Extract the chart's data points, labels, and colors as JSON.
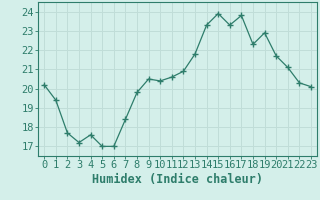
{
  "x": [
    0,
    1,
    2,
    3,
    4,
    5,
    6,
    7,
    8,
    9,
    10,
    11,
    12,
    13,
    14,
    15,
    16,
    17,
    18,
    19,
    20,
    21,
    22,
    23
  ],
  "y": [
    20.2,
    19.4,
    17.7,
    17.2,
    17.6,
    17.0,
    17.0,
    18.4,
    19.8,
    20.5,
    20.4,
    20.6,
    20.9,
    21.8,
    23.3,
    23.9,
    23.3,
    23.8,
    22.3,
    22.9,
    21.7,
    21.1,
    20.3,
    20.1
  ],
  "xlabel": "Humidex (Indice chaleur)",
  "ylim": [
    16.5,
    24.5
  ],
  "xlim": [
    -0.5,
    23.5
  ],
  "yticks": [
    17,
    18,
    19,
    20,
    21,
    22,
    23,
    24
  ],
  "xticks": [
    0,
    1,
    2,
    3,
    4,
    5,
    6,
    7,
    8,
    9,
    10,
    11,
    12,
    13,
    14,
    15,
    16,
    17,
    18,
    19,
    20,
    21,
    22,
    23
  ],
  "line_color": "#2E7D6B",
  "marker_color": "#2E7D6B",
  "bg_color": "#D4EFEA",
  "grid_color": "#C0DDD8",
  "axes_color": "#2E7D6B",
  "tick_label_color": "#2E7D6B",
  "xlabel_color": "#2E7D6B",
  "tick_fontsize": 7.5,
  "xlabel_fontsize": 8.5
}
